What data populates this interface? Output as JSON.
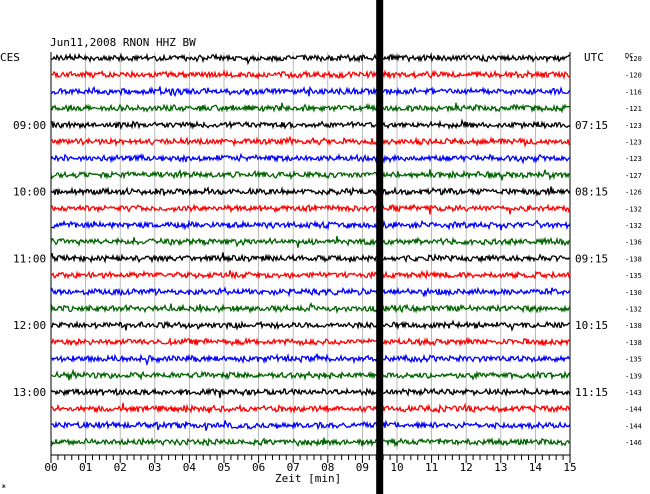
{
  "chart_data": {
    "type": "line",
    "title": "Jun11,2008  RNON HHZ BW",
    "left_timezone": "CES",
    "right_timezone": "UTC",
    "dc_label": "DC",
    "xlabel": "Zeit [min]",
    "xlim": [
      0,
      15
    ],
    "x_ticks": [
      "00",
      "01",
      "02",
      "03",
      "04",
      "05",
      "06",
      "07",
      "08",
      "09",
      "10",
      "11",
      "12",
      "13",
      "14",
      "15"
    ],
    "trace_colors": [
      "#000000",
      "#ff0000",
      "#0000ff",
      "#006400"
    ],
    "left_hour_labels": [
      {
        "row": 4,
        "label": "09:00"
      },
      {
        "row": 8,
        "label": "10:00"
      },
      {
        "row": 12,
        "label": "11:00"
      },
      {
        "row": 16,
        "label": "12:00"
      },
      {
        "row": 20,
        "label": "13:00"
      }
    ],
    "right_hour_labels": [
      {
        "row": 4,
        "label": "07:15"
      },
      {
        "row": 8,
        "label": "08:15"
      },
      {
        "row": 12,
        "label": "09:15"
      },
      {
        "row": 16,
        "label": "10:15"
      },
      {
        "row": 20,
        "label": "11:15"
      }
    ],
    "dc_offsets": [
      -120,
      -120,
      -116,
      -121,
      -123,
      -123,
      -123,
      -127,
      -126,
      -132,
      -132,
      -136,
      -138,
      -135,
      -130,
      -132,
      -138,
      -138,
      -135,
      -139,
      -143,
      -144,
      -144,
      -146
    ],
    "event_marker_minute": 9.5,
    "footer_mark": "ж"
  }
}
